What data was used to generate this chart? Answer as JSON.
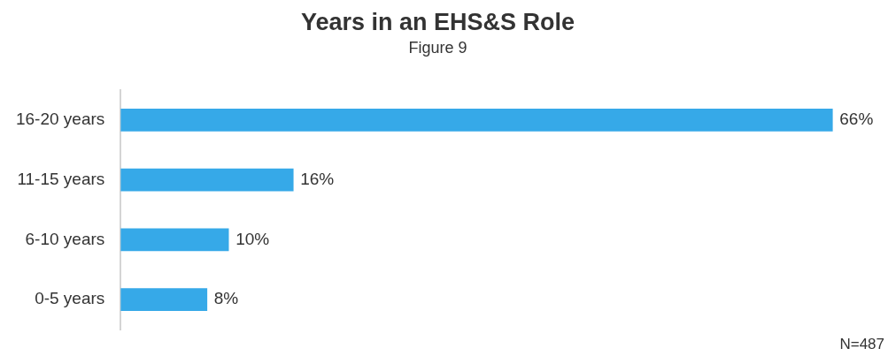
{
  "chart_data": {
    "type": "bar",
    "orientation": "horizontal",
    "title": "Years in an EHS&S Role",
    "subtitle": "Figure 9",
    "categories": [
      "16-20 years",
      "11-15 years",
      "6-10 years",
      "0-5 years"
    ],
    "values": [
      66,
      16,
      10,
      8
    ],
    "value_labels": [
      "66%",
      "16%",
      "10%",
      "8%"
    ],
    "color": "#36a9e8",
    "tick_labels": "y",
    "legend": false,
    "annotations": [
      "N=487"
    ]
  }
}
